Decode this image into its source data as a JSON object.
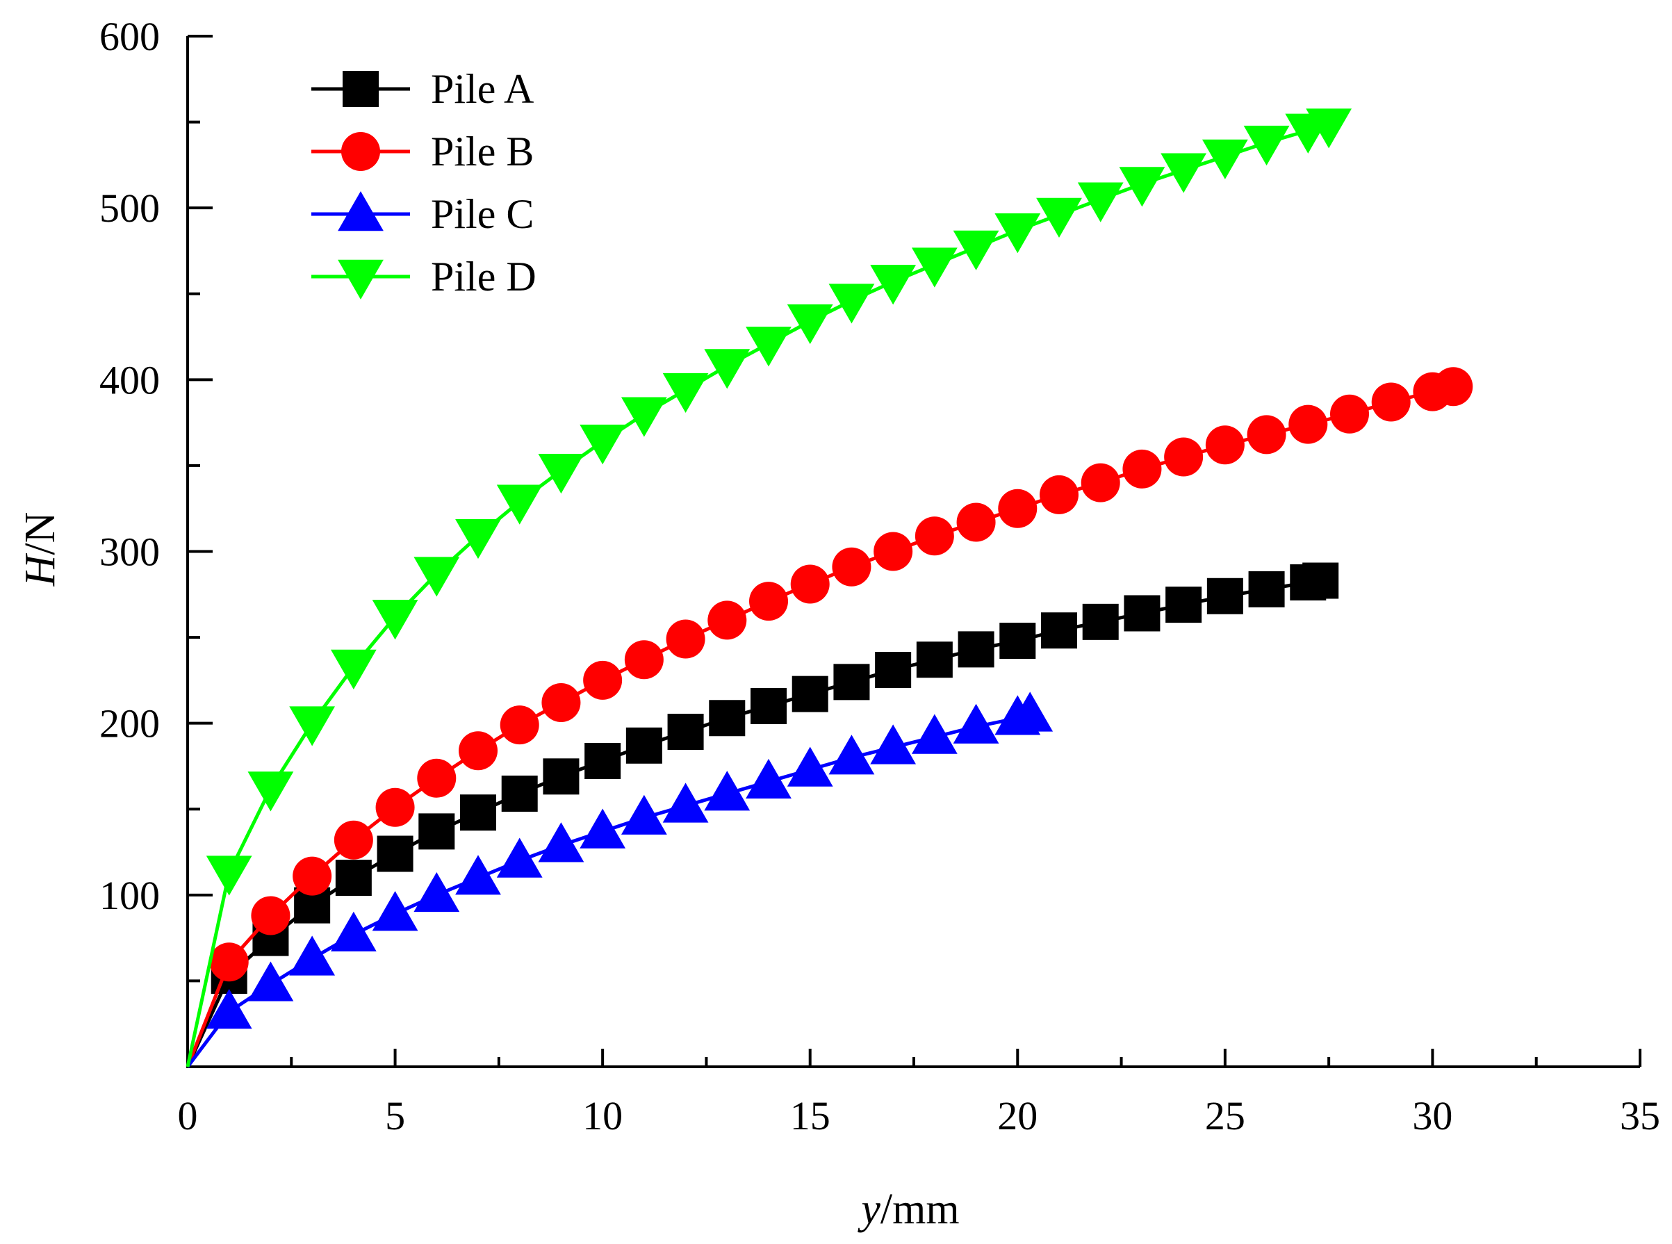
{
  "chart_data": {
    "type": "line",
    "title": "",
    "xlabel_italic": "y",
    "xlabel_rest": "/mm",
    "ylabel_italic": "H",
    "ylabel_rest": "/N",
    "xlim": [
      0,
      35
    ],
    "ylim": [
      0,
      600
    ],
    "xticks": [
      0,
      5,
      10,
      15,
      20,
      25,
      30,
      35
    ],
    "yticks": [
      100,
      200,
      300,
      400,
      500,
      600
    ],
    "grid": false,
    "legend_position": "top-left",
    "series": [
      {
        "name": "Pile A",
        "color": "#000000",
        "marker": "square",
        "x": [
          0,
          1,
          2,
          3,
          4,
          5,
          6,
          7,
          8,
          9,
          10,
          11,
          12,
          13,
          14,
          15,
          16,
          17,
          18,
          19,
          20,
          21,
          22,
          23,
          24,
          25,
          26,
          27,
          27.3
        ],
        "y": [
          0,
          53,
          75,
          94,
          110,
          124,
          137,
          148,
          159,
          169,
          178,
          187,
          195,
          203,
          210,
          217,
          224,
          231,
          237,
          243,
          248,
          254,
          259,
          264,
          269,
          274,
          278,
          282,
          283
        ]
      },
      {
        "name": "Pile B",
        "color": "#ff0000",
        "marker": "circle",
        "x": [
          0,
          1,
          2,
          3,
          4,
          5,
          6,
          7,
          8,
          9,
          10,
          11,
          12,
          13,
          14,
          15,
          16,
          17,
          18,
          19,
          20,
          21,
          22,
          23,
          24,
          25,
          26,
          27,
          28,
          29,
          30,
          30.5
        ],
        "y": [
          0,
          61,
          88,
          111,
          132,
          151,
          168,
          184,
          199,
          212,
          225,
          237,
          249,
          260,
          271,
          281,
          291,
          300,
          309,
          317,
          325,
          333,
          340,
          348,
          355,
          362,
          368,
          374,
          380,
          387,
          393,
          396
        ]
      },
      {
        "name": "Pile C",
        "color": "#0000ff",
        "marker": "triangle-up",
        "x": [
          0,
          1,
          2,
          3,
          4,
          5,
          6,
          7,
          8,
          9,
          10,
          11,
          12,
          13,
          14,
          15,
          16,
          17,
          18,
          19,
          20,
          20.3
        ],
        "y": [
          0,
          32,
          48,
          63,
          77,
          89,
          100,
          110,
          120,
          129,
          137,
          145,
          152,
          159,
          166,
          173,
          180,
          186,
          192,
          198,
          203,
          205
        ]
      },
      {
        "name": "Pile D",
        "color": "#00ff00",
        "marker": "triangle-down",
        "x": [
          0,
          1,
          2,
          3,
          4,
          5,
          6,
          7,
          8,
          9,
          10,
          11,
          12,
          13,
          14,
          15,
          16,
          17,
          18,
          19,
          20,
          21,
          22,
          23,
          24,
          25,
          26,
          27,
          27.5
        ],
        "y": [
          0,
          113,
          162,
          200,
          233,
          262,
          287,
          309,
          329,
          347,
          364,
          380,
          394,
          408,
          421,
          434,
          446,
          457,
          467,
          477,
          487,
          496,
          505,
          514,
          522,
          530,
          538,
          545,
          548
        ]
      }
    ]
  }
}
